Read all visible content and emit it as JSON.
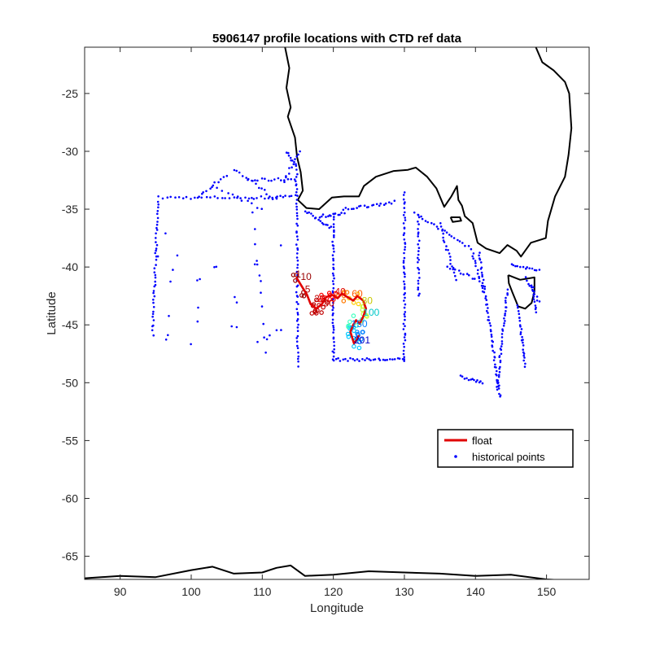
{
  "chart_data": {
    "type": "scatter",
    "title": "5906147 profile locations with CTD ref data",
    "xlabel": "Longitude",
    "ylabel": "Latitude",
    "xlim": [
      85,
      156
    ],
    "ylim": [
      -67,
      -21
    ],
    "xticks": [
      "90",
      "100",
      "110",
      "120",
      "130",
      "140",
      "150"
    ],
    "yticks": [
      "-25",
      "-30",
      "-35",
      "-40",
      "-45",
      "-50",
      "-55",
      "-60",
      "-65"
    ],
    "grid": false,
    "legend": {
      "placement": "right-middle",
      "entries": [
        {
          "label": "float",
          "color": "#e00000",
          "marker": "line"
        },
        {
          "label": "historical points",
          "color": "#0000ff",
          "marker": "dot"
        }
      ]
    },
    "series": [
      {
        "name": "float",
        "color": "#e00000",
        "points": [
          [
            114.8,
            -40.9
          ],
          [
            115.5,
            -41.6
          ],
          [
            116.3,
            -42.4
          ],
          [
            116.8,
            -43.2
          ],
          [
            117.6,
            -43.6
          ],
          [
            118.4,
            -43.2
          ],
          [
            119.0,
            -42.6
          ],
          [
            119.8,
            -42.4
          ],
          [
            120.6,
            -42.7
          ],
          [
            121.2,
            -42.3
          ],
          [
            122.0,
            -42.6
          ],
          [
            122.8,
            -42.9
          ],
          [
            123.4,
            -42.5
          ],
          [
            124.2,
            -42.9
          ],
          [
            124.6,
            -43.6
          ],
          [
            124.2,
            -44.3
          ],
          [
            123.7,
            -44.9
          ],
          [
            123.2,
            -44.6
          ],
          [
            122.8,
            -45.0
          ],
          [
            122.4,
            -45.6
          ],
          [
            122.7,
            -46.2
          ],
          [
            122.9,
            -46.6
          ],
          [
            123.3,
            -46.3
          ],
          [
            123.6,
            -45.9
          ]
        ]
      },
      {
        "name": "historical points",
        "color": "#0000ff",
        "points": []
      }
    ],
    "profile_labels": [
      {
        "text": "1",
        "lon": 114.7,
        "lat": -40.9,
        "color": "#990000"
      },
      {
        "text": "10",
        "lon": 115.4,
        "lat": -41.1,
        "color": "#990000"
      },
      {
        "text": "5",
        "lon": 116.0,
        "lat": -42.2,
        "color": "#b00000"
      },
      {
        "text": "20",
        "lon": 117.3,
        "lat": -43.0,
        "color": "#c00000"
      },
      {
        "text": "30",
        "lon": 118.6,
        "lat": -43.4,
        "color": "#c80000"
      },
      {
        "text": "40",
        "lon": 120.2,
        "lat": -42.4,
        "color": "#e00000"
      },
      {
        "text": "60",
        "lon": 122.6,
        "lat": -42.6,
        "color": "#ff5a00"
      },
      {
        "text": "80",
        "lon": 124.0,
        "lat": -43.2,
        "color": "#c8c800"
      },
      {
        "text": "100",
        "lon": 124.2,
        "lat": -44.2,
        "color": "#00c8c8"
      },
      {
        "text": "150",
        "lon": 122.5,
        "lat": -45.2,
        "color": "#0080ff"
      },
      {
        "text": "201",
        "lon": 122.9,
        "lat": -46.6,
        "color": "#0000c8"
      }
    ],
    "coastline_color": "#000000"
  }
}
